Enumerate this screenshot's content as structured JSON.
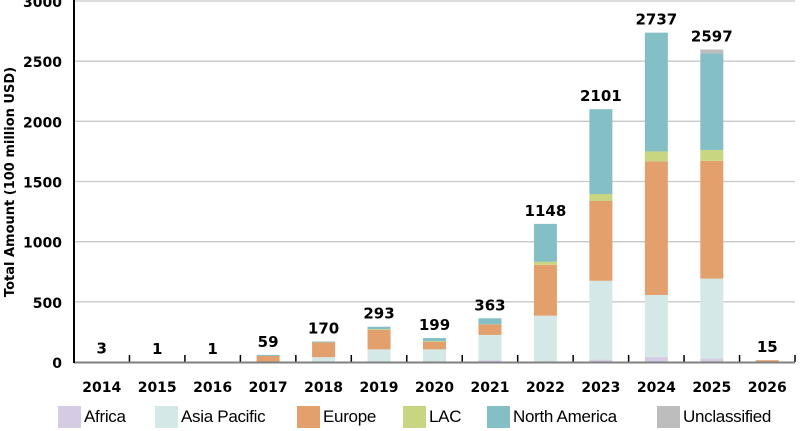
{
  "chart_data": {
    "type": "bar",
    "stacked": true,
    "title": "",
    "xlabel": "",
    "ylabel": "Total Amount (100 million USD)",
    "ylim": [
      0,
      3000
    ],
    "yticks": [
      0,
      500,
      1000,
      1500,
      2000,
      2500,
      3000
    ],
    "grid": true,
    "legend_position": "bottom",
    "categories": [
      "2014",
      "2015",
      "2016",
      "2017",
      "2018",
      "2019",
      "2020",
      "2021",
      "2022",
      "2023",
      "2024",
      "2025",
      "2026"
    ],
    "totals": [
      3,
      1,
      1,
      59,
      170,
      293,
      199,
      363,
      1148,
      2101,
      2737,
      2597,
      15
    ],
    "series": [
      {
        "name": "Africa",
        "color": "#d5cce3",
        "values": [
          0,
          0,
          0,
          0,
          0,
          0,
          0,
          15,
          5,
          20,
          42,
          30,
          0
        ]
      },
      {
        "name": "Asia Pacific",
        "color": "#d5e8e8",
        "values": [
          1,
          0,
          0,
          0,
          40,
          105,
          105,
          210,
          380,
          655,
          515,
          663,
          0
        ]
      },
      {
        "name": "Europe",
        "color": "#e3a06c",
        "values": [
          2,
          1,
          1,
          50,
          125,
          165,
          65,
          88,
          423,
          663,
          1110,
          978,
          15
        ]
      },
      {
        "name": "LAC",
        "color": "#c8d682",
        "values": [
          0,
          0,
          0,
          0,
          0,
          3,
          4,
          0,
          25,
          58,
          83,
          91,
          0
        ]
      },
      {
        "name": "North America",
        "color": "#85bfc6",
        "values": [
          0,
          0,
          0,
          9,
          5,
          20,
          25,
          50,
          315,
          705,
          987,
          802,
          0
        ]
      },
      {
        "name": "Unclassified",
        "color": "#bdbdbd",
        "values": [
          0,
          0,
          0,
          0,
          0,
          0,
          0,
          0,
          0,
          0,
          0,
          33,
          0
        ]
      }
    ]
  },
  "legend": {
    "items": [
      {
        "label": "Africa",
        "color": "#d5cce3"
      },
      {
        "label": "Asia Pacific",
        "color": "#d5e8e8"
      },
      {
        "label": "Europe",
        "color": "#e3a06c"
      },
      {
        "label": "LAC",
        "color": "#c8d682"
      },
      {
        "label": "North America",
        "color": "#85bfc6"
      },
      {
        "label": "Unclassified",
        "color": "#bdbdbd"
      }
    ]
  }
}
